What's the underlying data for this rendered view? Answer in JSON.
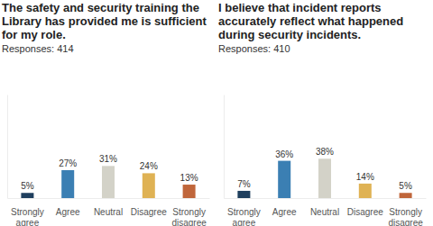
{
  "chart_data": [
    {
      "type": "bar",
      "title": "The safety and security training the Library has provided me is sufficient for my role.",
      "subtitle": "Responses: 414",
      "categories": [
        "Strongly agree",
        "Agree",
        "Neutral",
        "Disagree",
        "Strongly disagree"
      ],
      "values": [
        5,
        27,
        31,
        24,
        13
      ],
      "value_labels": [
        "5%",
        "27%",
        "31%",
        "24%",
        "13%"
      ],
      "colors": [
        "#1f3f5e",
        "#3b7fb3",
        "#d3d2c8",
        "#dfb254",
        "#c0663b"
      ],
      "ylim": [
        0,
        100
      ],
      "data_labels": true,
      "tick_labels": "x"
    },
    {
      "type": "bar",
      "title": "I believe that incident reports accurately reflect what happened during security incidents.",
      "subtitle": "Responses: 410",
      "categories": [
        "Strongly agree",
        "Agree",
        "Neutral",
        "Disagree",
        "Strongly disagree"
      ],
      "values": [
        7,
        36,
        38,
        14,
        5
      ],
      "value_labels": [
        "7%",
        "36%",
        "38%",
        "14%",
        "5%"
      ],
      "colors": [
        "#1f3f5e",
        "#3b7fb3",
        "#d3d2c8",
        "#dfb254",
        "#c0663b"
      ],
      "ylim": [
        0,
        100
      ],
      "data_labels": true,
      "tick_labels": "x"
    }
  ]
}
